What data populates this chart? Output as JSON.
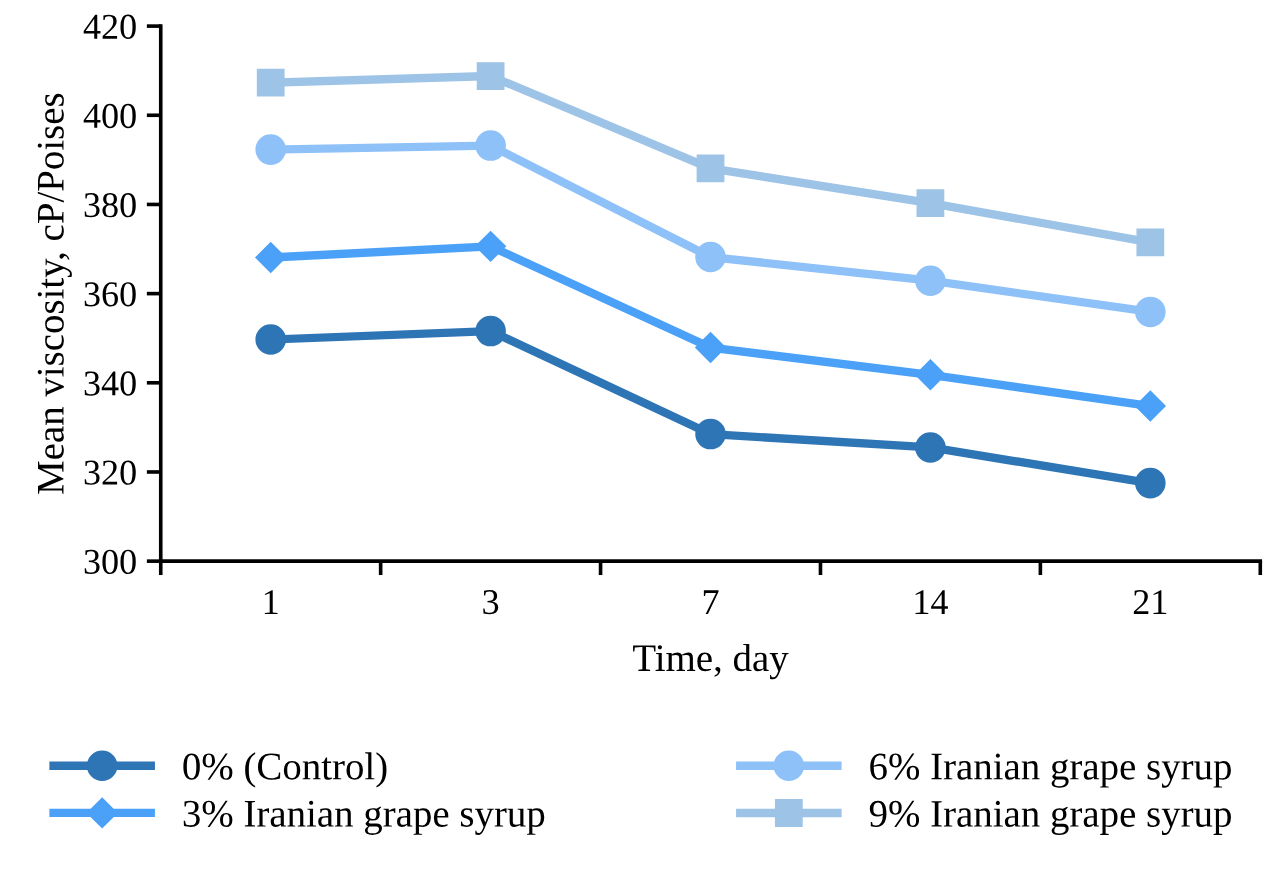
{
  "chart_data": {
    "type": "line",
    "xlabel": "Time, day",
    "ylabel": "Mean viscosity, cP/Poises",
    "categories": [
      "1",
      "3",
      "7",
      "14",
      "21"
    ],
    "series": [
      {
        "name": "0% (Control)",
        "color": "#2e75b6",
        "marker": "circle",
        "values": [
          349.7,
          351.6,
          328.5,
          325.5,
          317.5
        ]
      },
      {
        "name": "3% Iranian grape syrup",
        "color": "#4aa1f7",
        "marker": "diamond",
        "values": [
          368.1,
          370.6,
          347.9,
          341.8,
          334.8
        ]
      },
      {
        "name": "6% Iranian grape syrup",
        "color": "#8ec1f8",
        "marker": "circle",
        "values": [
          392.3,
          393.2,
          368.2,
          362.9,
          355.9
        ]
      },
      {
        "name": "9% Iranian grape syrup",
        "color": "#9dc3e6",
        "marker": "square",
        "values": [
          407.3,
          408.8,
          388.1,
          380.3,
          371.5
        ]
      }
    ],
    "ylim": [
      300,
      420
    ],
    "yticks": [
      300,
      320,
      340,
      360,
      380,
      400,
      420
    ],
    "grid": false,
    "legend": "bottom"
  }
}
